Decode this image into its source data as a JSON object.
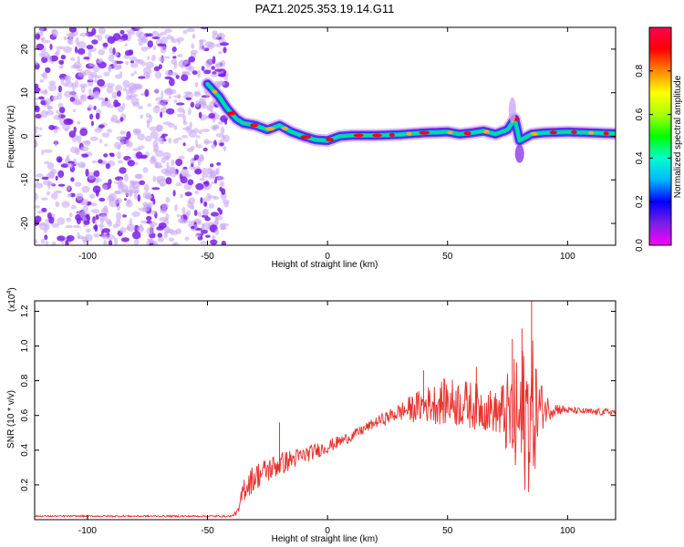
{
  "title": "PAZ1.2025.353.19.14.G11",
  "colors": {
    "signal_line": "#e8322f",
    "scatter_dark": "#7a1fe6",
    "scatter_light": "#c9a8f5",
    "colorbar_stops": [
      "#ff00ff",
      "#7a1fe6",
      "#0000ff",
      "#00b7ff",
      "#00ffcc",
      "#00ff00",
      "#aaff00",
      "#ffff00",
      "#ff8800",
      "#ff0000",
      "#ff0055"
    ]
  },
  "chart_data": [
    {
      "type": "heatmap",
      "title": "PAZ1.2025.353.19.14.G11",
      "xlabel": "Height of straight line (km)",
      "ylabel": "Frequency (Hz)",
      "xlim": [
        -122,
        120
      ],
      "ylim": [
        -25,
        25
      ],
      "xticks": [
        -100,
        -50,
        0,
        50,
        100
      ],
      "yticks": [
        -20,
        -10,
        0,
        10,
        20
      ],
      "colorbar": {
        "label": "Normalized spectral amplitude",
        "range": [
          0.0,
          1.0
        ],
        "ticks": [
          0.0,
          0.2,
          0.4,
          0.6,
          0.8
        ]
      },
      "noise_region": {
        "x": [
          -122,
          -42
        ],
        "frequency": [
          -25,
          25
        ]
      },
      "ridge": {
        "x": [
          -50,
          -45,
          -42,
          -38,
          -35,
          -30,
          -25,
          -20,
          -15,
          -10,
          -5,
          0,
          5,
          10,
          20,
          30,
          40,
          50,
          55,
          60,
          65,
          70,
          75,
          78,
          80,
          85,
          90,
          100,
          110,
          120
        ],
        "freq": [
          12,
          9,
          6.5,
          4,
          3,
          2.5,
          1.5,
          2.5,
          1,
          0,
          -0.8,
          -1,
          0,
          0.2,
          0.2,
          0.4,
          0.8,
          1,
          0.5,
          0.8,
          1.2,
          0.5,
          1.5,
          4,
          -1,
          0.5,
          0.8,
          1,
          0.8,
          0.6
        ]
      }
    },
    {
      "type": "line",
      "xlabel": "Height of straight line (km)",
      "ylabel": "SNR (10 * v/v)",
      "y_multiplier": "(x10",
      "y_multiplier_exp": "4",
      "y_multiplier_close": ")",
      "xlim": [
        -122,
        120
      ],
      "ylim": [
        0,
        1.26
      ],
      "xticks": [
        -100,
        -50,
        0,
        50,
        100
      ],
      "yticks": [
        0.2,
        0.4,
        0.6,
        0.8,
        1.0,
        1.2
      ],
      "envelope": {
        "x": [
          -122,
          -40,
          -37,
          -35,
          -30,
          -20,
          -10,
          0,
          10,
          20,
          30,
          35,
          40,
          50,
          60,
          70,
          75,
          80,
          85,
          90,
          95,
          100,
          110,
          120
        ],
        "base": [
          0.02,
          0.02,
          0.05,
          0.18,
          0.25,
          0.32,
          0.37,
          0.42,
          0.48,
          0.56,
          0.62,
          0.64,
          0.66,
          0.68,
          0.66,
          0.62,
          0.6,
          0.55,
          0.62,
          0.64,
          0.64,
          0.63,
          0.62,
          0.62
        ],
        "amp": [
          0.005,
          0.005,
          0.02,
          0.08,
          0.08,
          0.07,
          0.05,
          0.04,
          0.03,
          0.03,
          0.05,
          0.08,
          0.1,
          0.14,
          0.14,
          0.12,
          0.25,
          0.45,
          0.45,
          0.1,
          0.04,
          0.02,
          0.02,
          0.02
        ]
      },
      "peaks": {
        "x": [
          85,
          81,
          77,
          40,
          62,
          -20
        ],
        "y": [
          1.26,
          1.1,
          1.04,
          0.86,
          0.88,
          0.56
        ]
      }
    }
  ]
}
